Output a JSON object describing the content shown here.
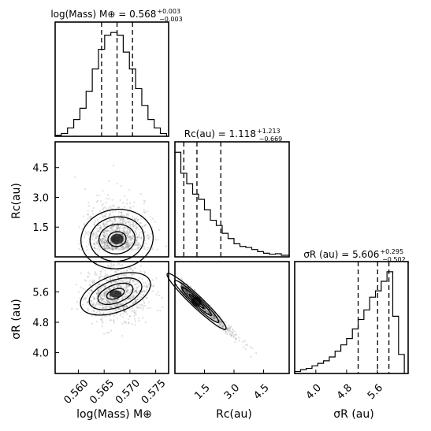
{
  "chart_data": {
    "type": "corner",
    "parameters": [
      {
        "id": "logmass",
        "label": "log(Mass) M⊕",
        "title": {
          "main": "log(Mass) M⊕ = 0.568",
          "sup": "+0.003",
          "sub": "−0.003"
        },
        "quantiles": [
          0.5645,
          0.5675,
          0.5705
        ],
        "range": [
          0.5555,
          0.5775
        ],
        "ticks": [
          0.56,
          0.565,
          0.57,
          0.575
        ],
        "tick_labels": [
          "0.560",
          "0.565",
          "0.570",
          "0.575"
        ],
        "histogram": {
          "bin_edges": [
            0.5555,
            0.5567,
            0.5579,
            0.5591,
            0.5603,
            0.5615,
            0.5627,
            0.5639,
            0.5651,
            0.5663,
            0.5675,
            0.5687,
            0.5699,
            0.5711,
            0.5723,
            0.5735,
            0.5747,
            0.5759,
            0.5771
          ],
          "counts": [
            0.2,
            0.5,
            1.5,
            3.0,
            5.0,
            8.0,
            12.0,
            15.5,
            18.0,
            18.5,
            18.0,
            15.0,
            12.0,
            8.5,
            5.5,
            3.0,
            1.5,
            0.5
          ]
        }
      },
      {
        "id": "rc",
        "label": "Rc(au)",
        "title": {
          "main": "Rc(au) = 1.118",
          "sup": "+1.213",
          "sub": "−0.669"
        },
        "quantiles": [
          0.45,
          1.118,
          2.33
        ],
        "range": [
          0.0,
          5.8
        ],
        "ticks": [
          1.5,
          3.0,
          4.5
        ],
        "tick_labels": [
          "1.5",
          "3.0",
          "4.5"
        ],
        "histogram": {
          "bin_edges": [
            0.0,
            0.3,
            0.6,
            0.9,
            1.2,
            1.5,
            1.8,
            2.1,
            2.4,
            2.7,
            3.0,
            3.3,
            3.6,
            3.9,
            4.2,
            4.5,
            4.8,
            5.1,
            5.4,
            5.8
          ],
          "counts": [
            20,
            16,
            14,
            12,
            11,
            9,
            7,
            6,
            4.5,
            3.5,
            2.5,
            2.0,
            1.8,
            1.4,
            1.0,
            0.7,
            0.5,
            0.6,
            0.3
          ]
        }
      },
      {
        "id": "sigmar",
        "label": "σR (au)",
        "title": {
          "main": "σR (au) = 5.606",
          "sup": "+0.295",
          "sub": "−0.502"
        },
        "quantiles": [
          5.1,
          5.606,
          5.9
        ],
        "range": [
          3.45,
          6.4
        ],
        "ticks": [
          4.0,
          4.8,
          5.6
        ],
        "tick_labels": [
          "4.0",
          "4.8",
          "5.6"
        ],
        "histogram": {
          "bin_edges": [
            3.45,
            3.6,
            3.75,
            3.9,
            4.05,
            4.2,
            4.35,
            4.5,
            4.65,
            4.8,
            4.95,
            5.1,
            5.25,
            5.4,
            5.55,
            5.7,
            5.85,
            6.0,
            6.15,
            6.3
          ],
          "counts": [
            0.3,
            0.6,
            0.8,
            1.2,
            1.6,
            2.0,
            2.6,
            3.5,
            4.5,
            5.5,
            7.0,
            8.5,
            10.0,
            12.0,
            13.0,
            14.5,
            16.0,
            9.0,
            3.0
          ]
        }
      }
    ],
    "contour_levels": [
      "0.5σ",
      "1σ",
      "1.5σ",
      "2σ"
    ],
    "colors": {
      "line": "#000000",
      "density": "#000000",
      "background": "#ffffff"
    }
  }
}
